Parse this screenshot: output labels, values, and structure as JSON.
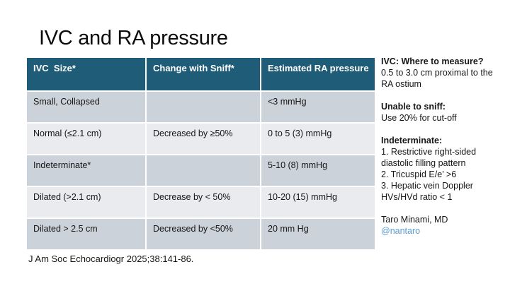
{
  "slide": {
    "title": "IVC and RA pressure",
    "citation": "J Am Soc Echocardiogr 2025;38:141-86."
  },
  "table": {
    "headers": [
      "IVC  Size*",
      "Change with Sniff*",
      "Estimated RA pressure"
    ],
    "rows": [
      {
        "cells": [
          "Small, Collapsed",
          "",
          "<3 mmHg"
        ]
      },
      {
        "cells": [
          "Normal (≤2.1 cm)",
          "Decreased by ≥50%",
          "0 to 5 (3) mmHg"
        ]
      },
      {
        "cells": [
          "Indeterminate*",
          "",
          "5-10 (8) mmHg"
        ]
      },
      {
        "cells": [
          "Dilated (>2.1 cm)",
          "Decrease by < 50%",
          "10-20 (15) mmHg"
        ]
      },
      {
        "cells": [
          "Dilated > 2.5 cm",
          "Decreased by <50%",
          "20 mm Hg"
        ]
      }
    ]
  },
  "notes": {
    "measure_heading": "IVC: Where to measure?",
    "measure_body": "0.5 to 3.0 cm proximal to the RA ostium",
    "sniff_heading": "Unable to sniff:",
    "sniff_body": "Use 20% for cut-off",
    "indeterminate_heading": "Indeterminate:",
    "indeterminate_items": [
      "1. Restrictive right-sided diastolic filling pattern",
      "2. Tricuspid E/e’ >6",
      "3. Hepatic vein Doppler HVs/HVd ratio < 1"
    ],
    "author": "Taro Minami, MD",
    "handle": "@nantaro"
  },
  "colors": {
    "header_bg": "#1f5c78",
    "row_dark": "#ccd2d9",
    "row_light": "#e9ebee",
    "handle_link": "#5b9bd5",
    "header_text": "#ffffff"
  }
}
